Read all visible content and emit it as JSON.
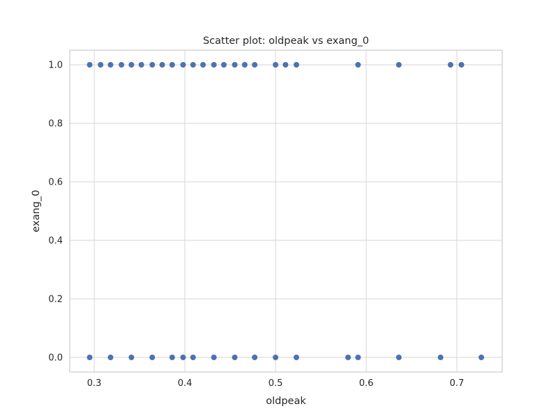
{
  "chart_data": {
    "type": "scatter",
    "title": "Scatter plot: oldpeak vs exang_0",
    "xlabel": "oldpeak",
    "ylabel": "exang_0",
    "xlim": [
      0.273,
      0.75
    ],
    "ylim": [
      -0.05,
      1.05
    ],
    "xticks": [
      "0.3",
      "0.4",
      "0.5",
      "0.6",
      "0.7"
    ],
    "yticks": [
      "0.0",
      "0.2",
      "0.4",
      "0.6",
      "0.8",
      "1.0"
    ],
    "grid": true,
    "point_color": "#4c72b0",
    "series": [
      {
        "x": [
          0.295,
          0.307,
          0.318,
          0.33,
          0.341,
          0.352,
          0.364,
          0.375,
          0.386,
          0.398,
          0.409,
          0.42,
          0.432,
          0.443,
          0.455,
          0.466,
          0.477,
          0.5,
          0.511,
          0.523,
          0.591,
          0.636,
          0.693,
          0.705,
          0.295,
          0.318,
          0.341,
          0.364,
          0.386,
          0.398,
          0.409,
          0.432,
          0.455,
          0.477,
          0.5,
          0.523,
          0.58,
          0.591,
          0.636,
          0.682,
          0.727
        ],
        "y": [
          1,
          1,
          1,
          1,
          1,
          1,
          1,
          1,
          1,
          1,
          1,
          1,
          1,
          1,
          1,
          1,
          1,
          1,
          1,
          1,
          1,
          1,
          1,
          1,
          0,
          0,
          0,
          0,
          0,
          0,
          0,
          0,
          0,
          0,
          0,
          0,
          0,
          0,
          0,
          0,
          0
        ]
      }
    ]
  }
}
